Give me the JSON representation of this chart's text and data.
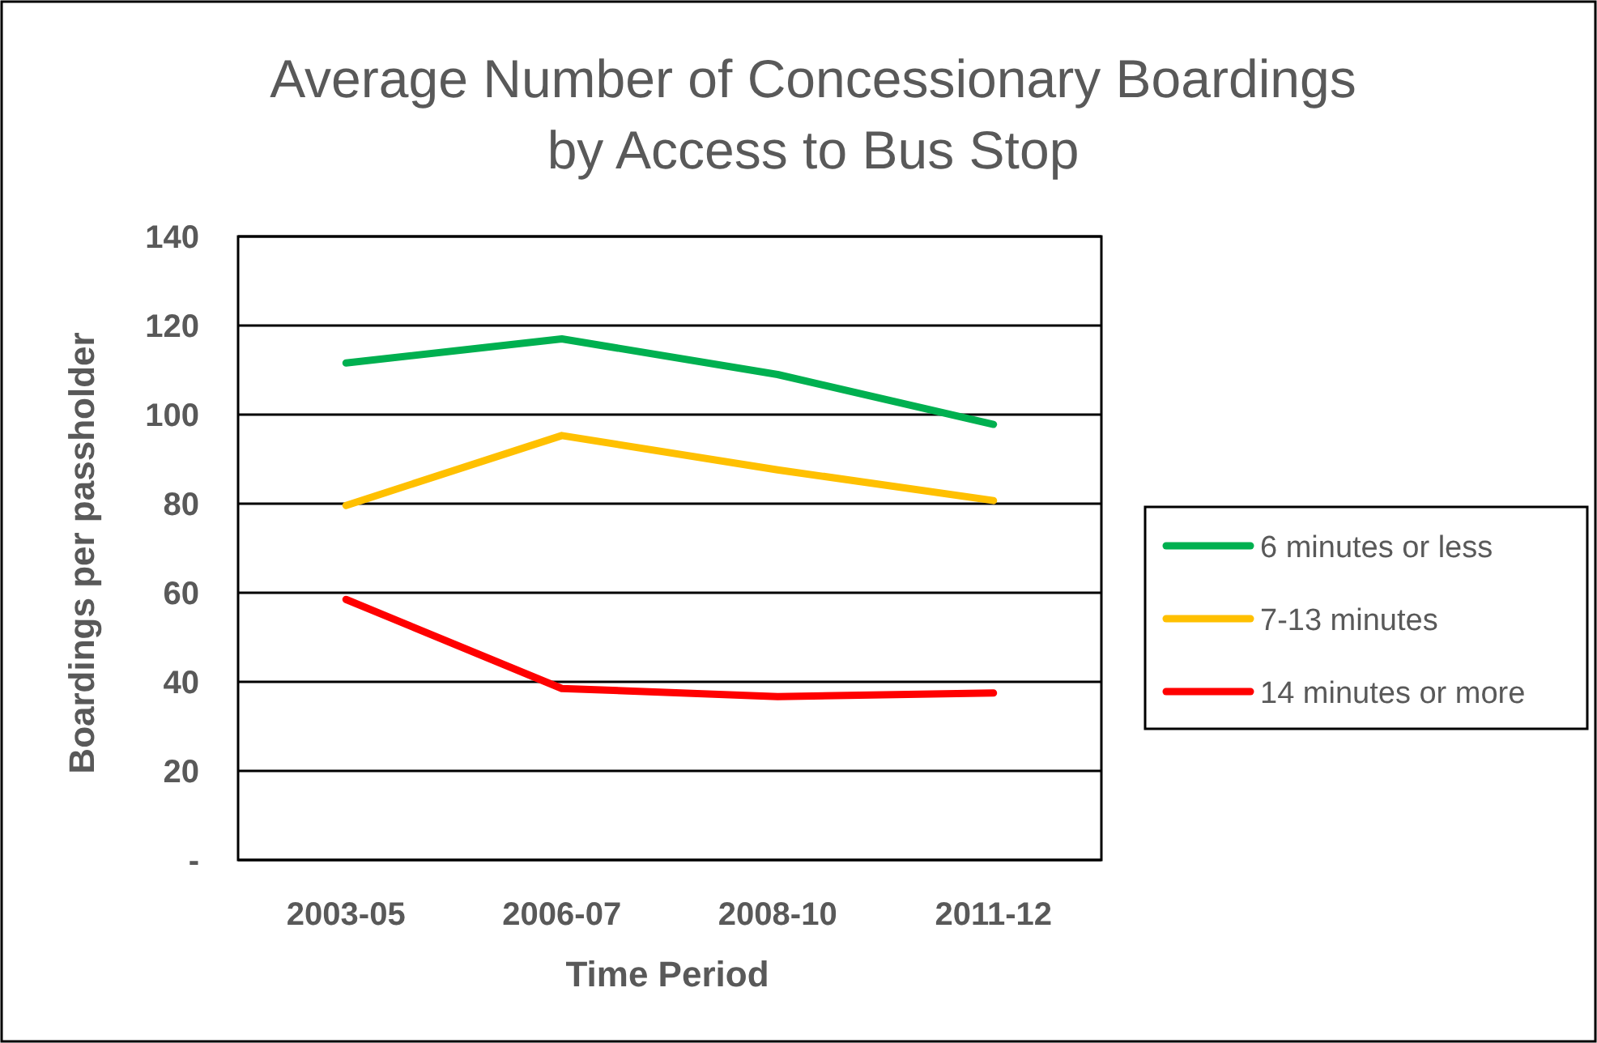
{
  "chart_data": {
    "type": "line",
    "title": "Average Number of Concessionary Boardings\nby Access to Bus Stop",
    "xlabel": "Time Period",
    "ylabel": "Boardings per passholder",
    "categories": [
      "2003-05",
      "2006-07",
      "2008-10",
      "2011-12"
    ],
    "series": [
      {
        "name": "6 minutes or less",
        "color": "#00b050",
        "values": [
          111.6,
          117,
          109,
          97.8
        ]
      },
      {
        "name": "7-13 minutes",
        "color": "#ffc000",
        "values": [
          79.6,
          95.3,
          87.6,
          80.7
        ]
      },
      {
        "name": "14 minutes or more",
        "color": "#ff0000",
        "values": [
          58.5,
          38.5,
          36.7,
          37.5
        ]
      }
    ],
    "ylim": [
      0,
      140
    ],
    "yticks": [
      {
        "value": 0,
        "label": "-"
      },
      20,
      40,
      60,
      80,
      100,
      120,
      140
    ],
    "grid": "y",
    "legend": "right",
    "marker": "none",
    "line_style": "solid"
  }
}
